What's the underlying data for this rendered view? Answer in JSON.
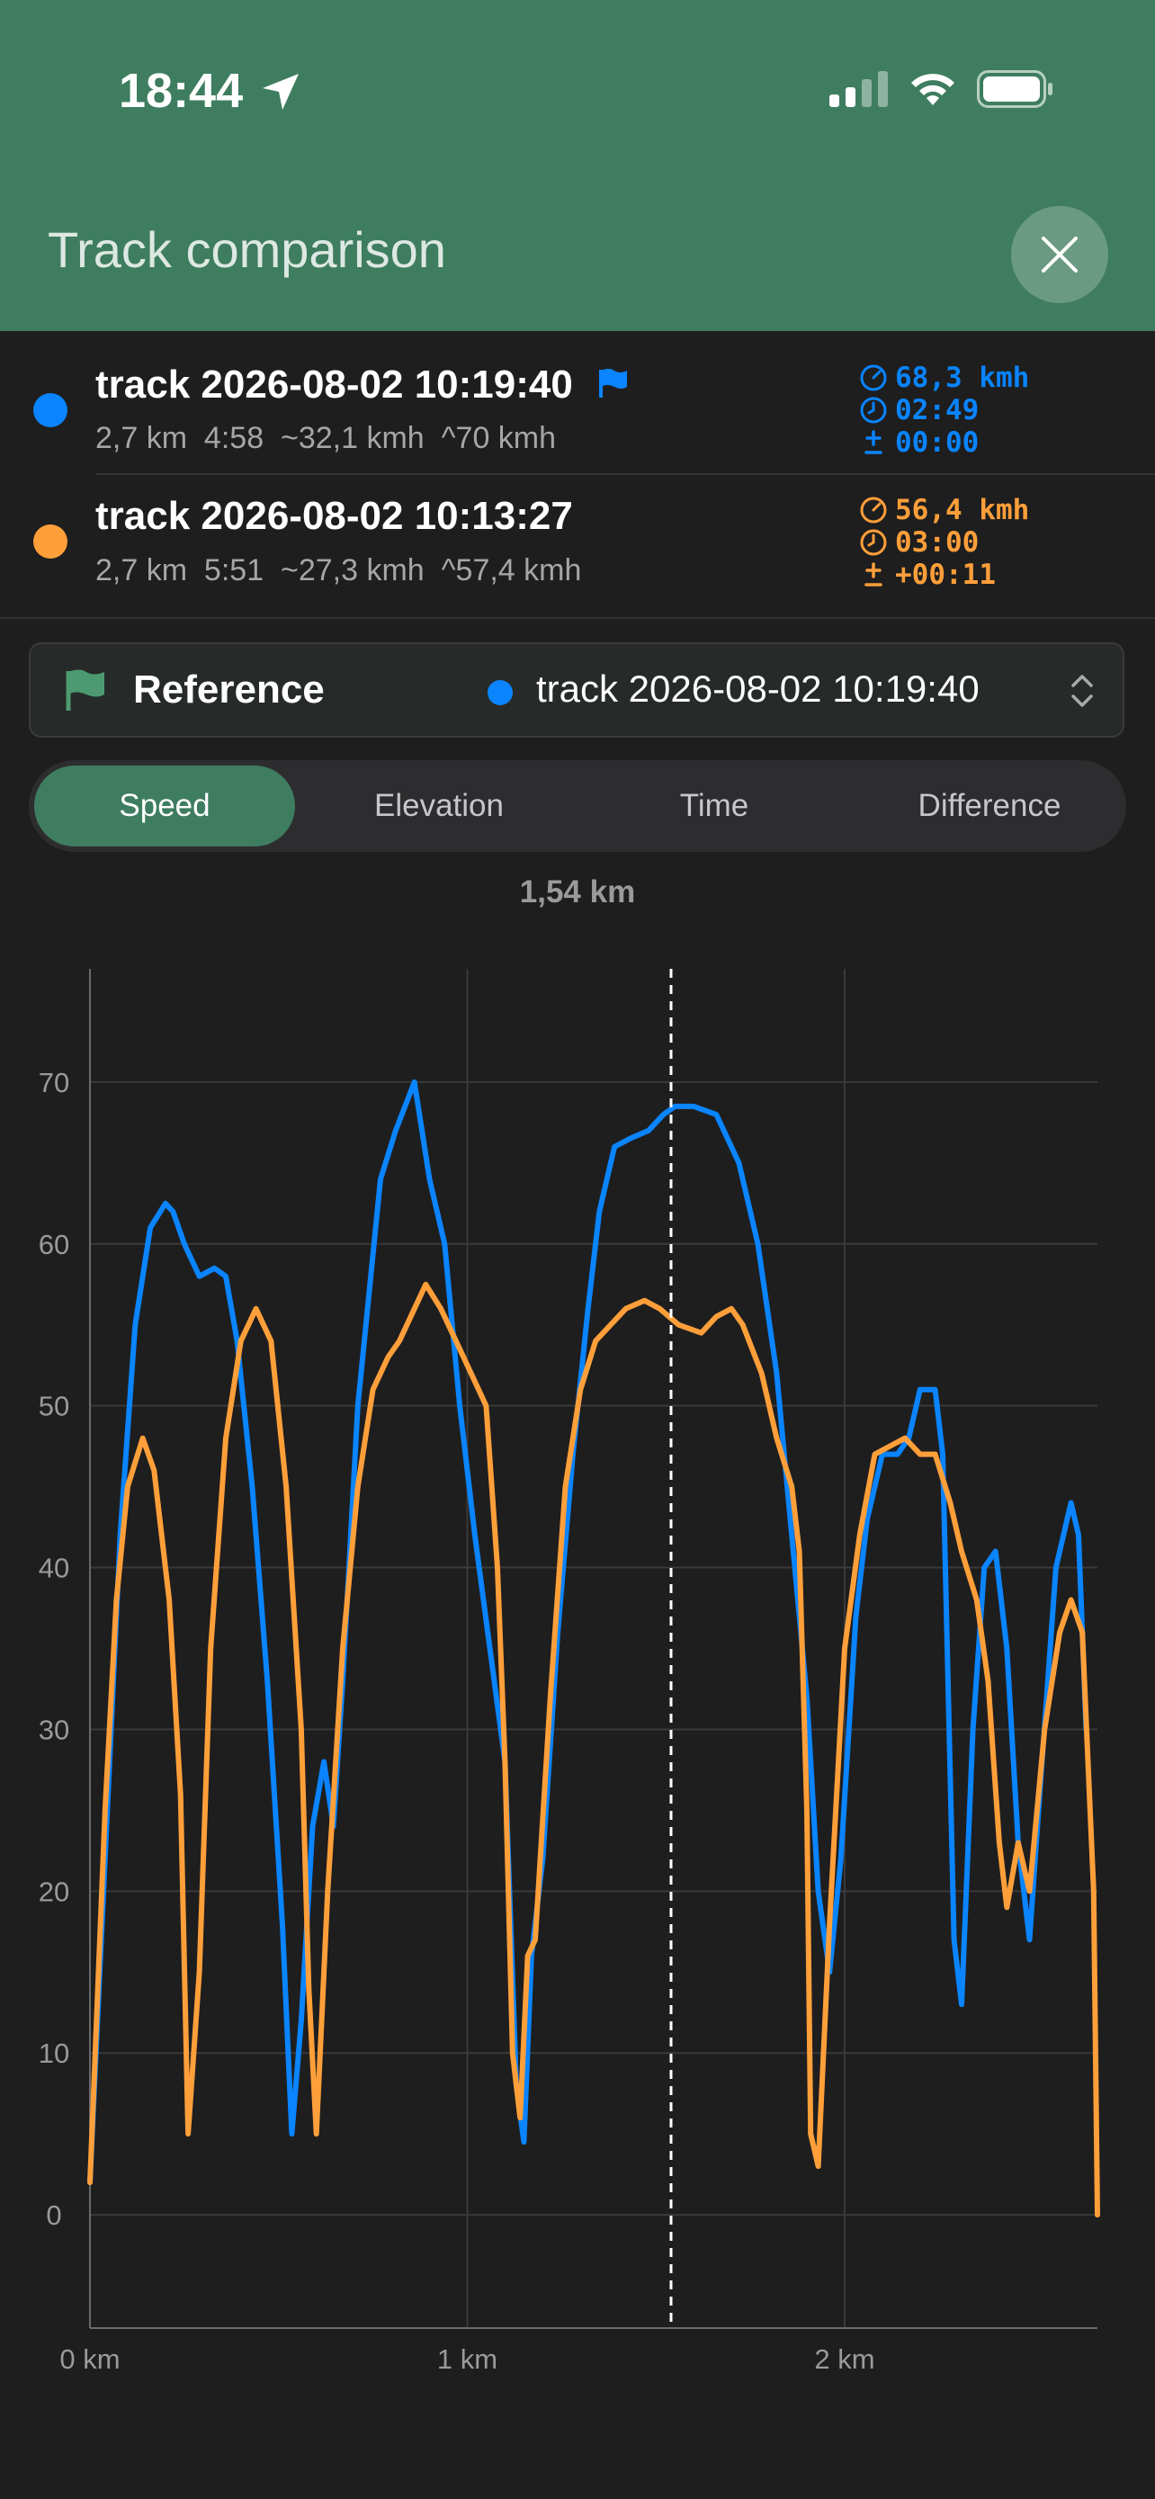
{
  "status_bar": {
    "time": "18:44"
  },
  "header": {
    "title": "Track comparison",
    "close_icon": "close-icon"
  },
  "tracks": [
    {
      "name": "track 2026-08-02 10:19:40",
      "color": "#0a84ff",
      "is_reference": true,
      "stats": "2,7 km  4:58  ~32,1 kmh  ^70 kmh",
      "speed": "68,3 kmh",
      "time": "02:49",
      "diff": "00:00"
    },
    {
      "name": "track 2026-08-02 10:13:27",
      "color": "#ff9f3a",
      "is_reference": false,
      "stats": "2,7 km  5:51  ~27,3 kmh  ^57,4 kmh",
      "speed": "56,4 kmh",
      "time": "03:00",
      "diff": "+00:11"
    }
  ],
  "reference": {
    "label": "Reference",
    "value": "track 2026-08-02 10:19:40"
  },
  "tabs": [
    {
      "label": "Speed",
      "active": true
    },
    {
      "label": "Elevation",
      "active": false
    },
    {
      "label": "Time",
      "active": false
    },
    {
      "label": "Difference",
      "active": false
    }
  ],
  "cursor_label": "1,54 km",
  "chart_data": {
    "type": "line",
    "x_unit": "km",
    "xlim": [
      0,
      2.67
    ],
    "ylim": [
      -7,
      77
    ],
    "x_ticks": [
      0,
      1,
      2
    ],
    "x_tick_labels": [
      "0 km",
      "1 km",
      "2 km"
    ],
    "y_ticks": [
      0,
      10,
      20,
      30,
      40,
      50,
      60,
      70
    ],
    "y_tick_labels": [
      "0",
      "10",
      "20",
      "30",
      "40",
      "50",
      "60",
      "70"
    ],
    "grid": true,
    "cursor_x": 1.54,
    "series": [
      {
        "color": "#0a84ff",
        "points": [
          [
            0,
            2
          ],
          [
            0.04,
            22
          ],
          [
            0.08,
            42
          ],
          [
            0.12,
            55
          ],
          [
            0.16,
            61
          ],
          [
            0.2,
            62.5
          ],
          [
            0.22,
            62
          ],
          [
            0.25,
            60
          ],
          [
            0.29,
            58
          ],
          [
            0.33,
            58.5
          ],
          [
            0.36,
            58
          ],
          [
            0.39,
            54
          ],
          [
            0.43,
            45
          ],
          [
            0.47,
            33
          ],
          [
            0.51,
            18
          ],
          [
            0.535,
            5
          ],
          [
            0.56,
            12
          ],
          [
            0.59,
            24
          ],
          [
            0.62,
            28
          ],
          [
            0.645,
            24
          ],
          [
            0.67,
            33
          ],
          [
            0.71,
            50
          ],
          [
            0.77,
            64
          ],
          [
            0.81,
            67
          ],
          [
            0.86,
            70
          ],
          [
            0.9,
            64
          ],
          [
            0.94,
            60
          ],
          [
            0.98,
            50
          ],
          [
            1.02,
            42
          ],
          [
            1.06,
            35
          ],
          [
            1.1,
            28
          ],
          [
            1.13,
            8
          ],
          [
            1.15,
            4.5
          ],
          [
            1.17,
            16
          ],
          [
            1.2,
            22
          ],
          [
            1.24,
            36
          ],
          [
            1.28,
            47
          ],
          [
            1.32,
            56
          ],
          [
            1.35,
            62
          ],
          [
            1.39,
            66
          ],
          [
            1.43,
            66.5
          ],
          [
            1.48,
            67
          ],
          [
            1.52,
            68
          ],
          [
            1.55,
            68.5
          ],
          [
            1.6,
            68.5
          ],
          [
            1.66,
            68
          ],
          [
            1.72,
            65
          ],
          [
            1.77,
            60
          ],
          [
            1.82,
            52
          ],
          [
            1.86,
            42
          ],
          [
            1.9,
            32
          ],
          [
            1.93,
            20
          ],
          [
            1.96,
            15
          ],
          [
            1.99,
            22
          ],
          [
            2.03,
            37
          ],
          [
            2.06,
            43
          ],
          [
            2.1,
            47
          ],
          [
            2.14,
            47
          ],
          [
            2.17,
            48
          ],
          [
            2.2,
            51
          ],
          [
            2.24,
            51
          ],
          [
            2.26,
            47
          ],
          [
            2.29,
            17
          ],
          [
            2.31,
            13
          ],
          [
            2.34,
            30
          ],
          [
            2.37,
            40
          ],
          [
            2.4,
            41
          ],
          [
            2.43,
            35
          ],
          [
            2.46,
            23
          ],
          [
            2.49,
            17
          ],
          [
            2.52,
            27
          ],
          [
            2.56,
            40
          ],
          [
            2.6,
            44
          ],
          [
            2.62,
            42
          ],
          [
            2.64,
            30
          ]
        ]
      },
      {
        "color": "#ff9f3a",
        "points": [
          [
            0,
            2
          ],
          [
            0.04,
            25
          ],
          [
            0.07,
            38
          ],
          [
            0.1,
            45
          ],
          [
            0.14,
            48
          ],
          [
            0.17,
            46
          ],
          [
            0.21,
            38
          ],
          [
            0.24,
            26
          ],
          [
            0.26,
            5
          ],
          [
            0.29,
            15
          ],
          [
            0.32,
            35
          ],
          [
            0.36,
            48
          ],
          [
            0.4,
            54
          ],
          [
            0.44,
            56
          ],
          [
            0.48,
            54
          ],
          [
            0.52,
            45
          ],
          [
            0.56,
            30
          ],
          [
            0.58,
            14
          ],
          [
            0.6,
            5
          ],
          [
            0.63,
            20
          ],
          [
            0.67,
            35
          ],
          [
            0.71,
            45
          ],
          [
            0.75,
            51
          ],
          [
            0.79,
            53
          ],
          [
            0.82,
            54
          ],
          [
            0.85,
            55.5
          ],
          [
            0.89,
            57.5
          ],
          [
            0.93,
            56
          ],
          [
            0.97,
            54
          ],
          [
            1.01,
            52
          ],
          [
            1.05,
            50
          ],
          [
            1.08,
            40
          ],
          [
            1.1,
            28
          ],
          [
            1.12,
            10
          ],
          [
            1.14,
            6
          ],
          [
            1.16,
            16
          ],
          [
            1.18,
            17
          ],
          [
            1.22,
            32
          ],
          [
            1.26,
            45
          ],
          [
            1.3,
            51
          ],
          [
            1.34,
            54
          ],
          [
            1.38,
            55
          ],
          [
            1.42,
            56
          ],
          [
            1.47,
            56.5
          ],
          [
            1.51,
            56
          ],
          [
            1.56,
            55
          ],
          [
            1.62,
            54.5
          ],
          [
            1.66,
            55.5
          ],
          [
            1.7,
            56
          ],
          [
            1.73,
            55
          ],
          [
            1.78,
            52
          ],
          [
            1.82,
            48
          ],
          [
            1.86,
            45
          ],
          [
            1.88,
            41
          ],
          [
            1.9,
            25
          ],
          [
            1.91,
            5
          ],
          [
            1.93,
            3
          ],
          [
            1.96,
            18
          ],
          [
            2.0,
            35
          ],
          [
            2.04,
            42
          ],
          [
            2.08,
            47
          ],
          [
            2.12,
            47.5
          ],
          [
            2.16,
            48
          ],
          [
            2.2,
            47
          ],
          [
            2.24,
            47
          ],
          [
            2.28,
            44
          ],
          [
            2.31,
            41
          ],
          [
            2.35,
            38
          ],
          [
            2.38,
            33
          ],
          [
            2.41,
            23
          ],
          [
            2.43,
            19
          ],
          [
            2.46,
            23
          ],
          [
            2.49,
            20
          ],
          [
            2.53,
            30
          ],
          [
            2.57,
            36
          ],
          [
            2.6,
            38
          ],
          [
            2.63,
            36
          ],
          [
            2.66,
            20
          ],
          [
            2.67,
            0
          ]
        ]
      }
    ]
  }
}
